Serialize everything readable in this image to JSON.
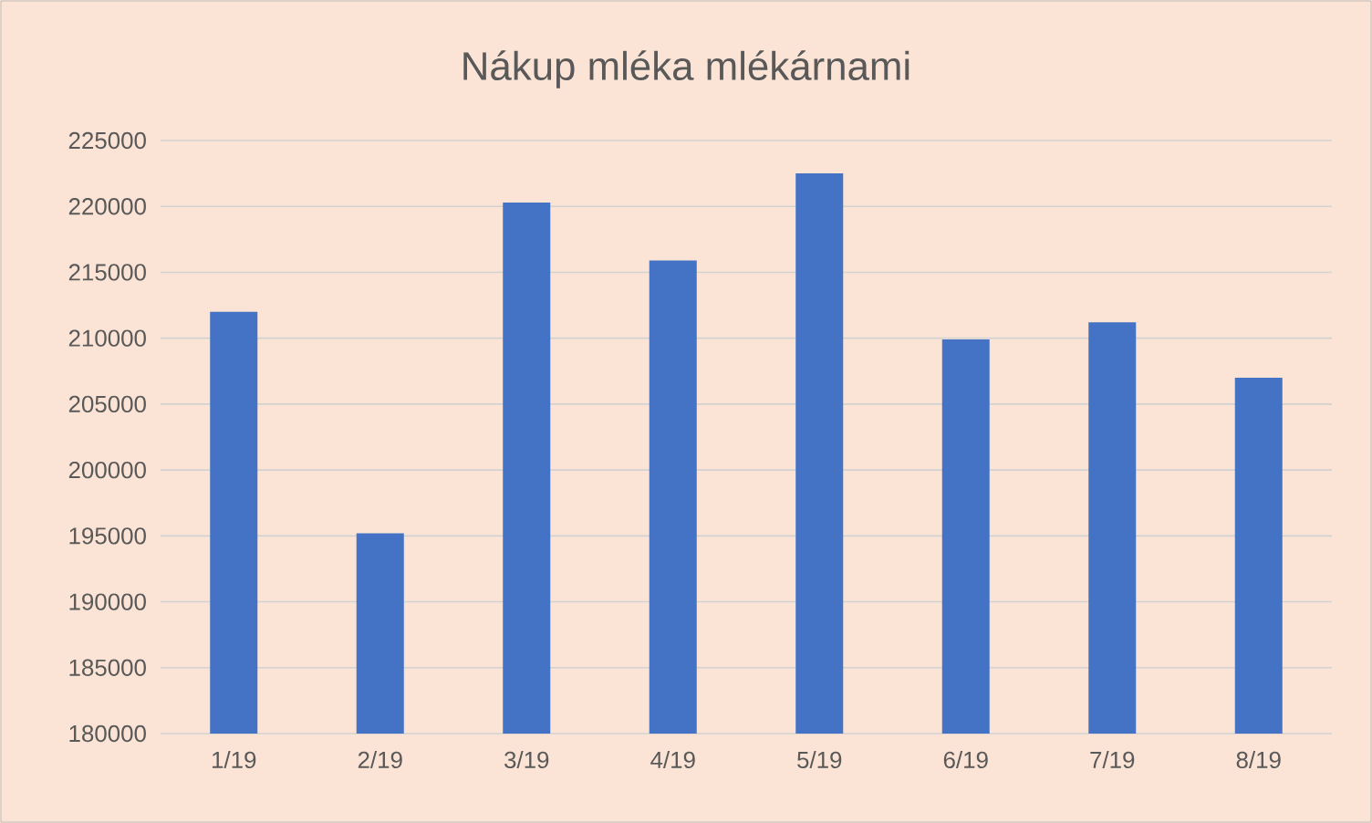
{
  "chart_data": {
    "type": "bar",
    "title": "Nákup mléka mlékárnami",
    "categories": [
      "1/19",
      "2/19",
      "3/19",
      "4/19",
      "5/19",
      "6/19",
      "7/19",
      "8/19"
    ],
    "values": [
      212000,
      195200,
      220300,
      215900,
      222500,
      209900,
      211200,
      207000
    ],
    "color": "#4472c4",
    "ylim": [
      180000,
      225000
    ],
    "yticks": [
      180000,
      185000,
      190000,
      195000,
      200000,
      205000,
      210000,
      215000,
      220000,
      225000
    ],
    "grid": "y"
  }
}
